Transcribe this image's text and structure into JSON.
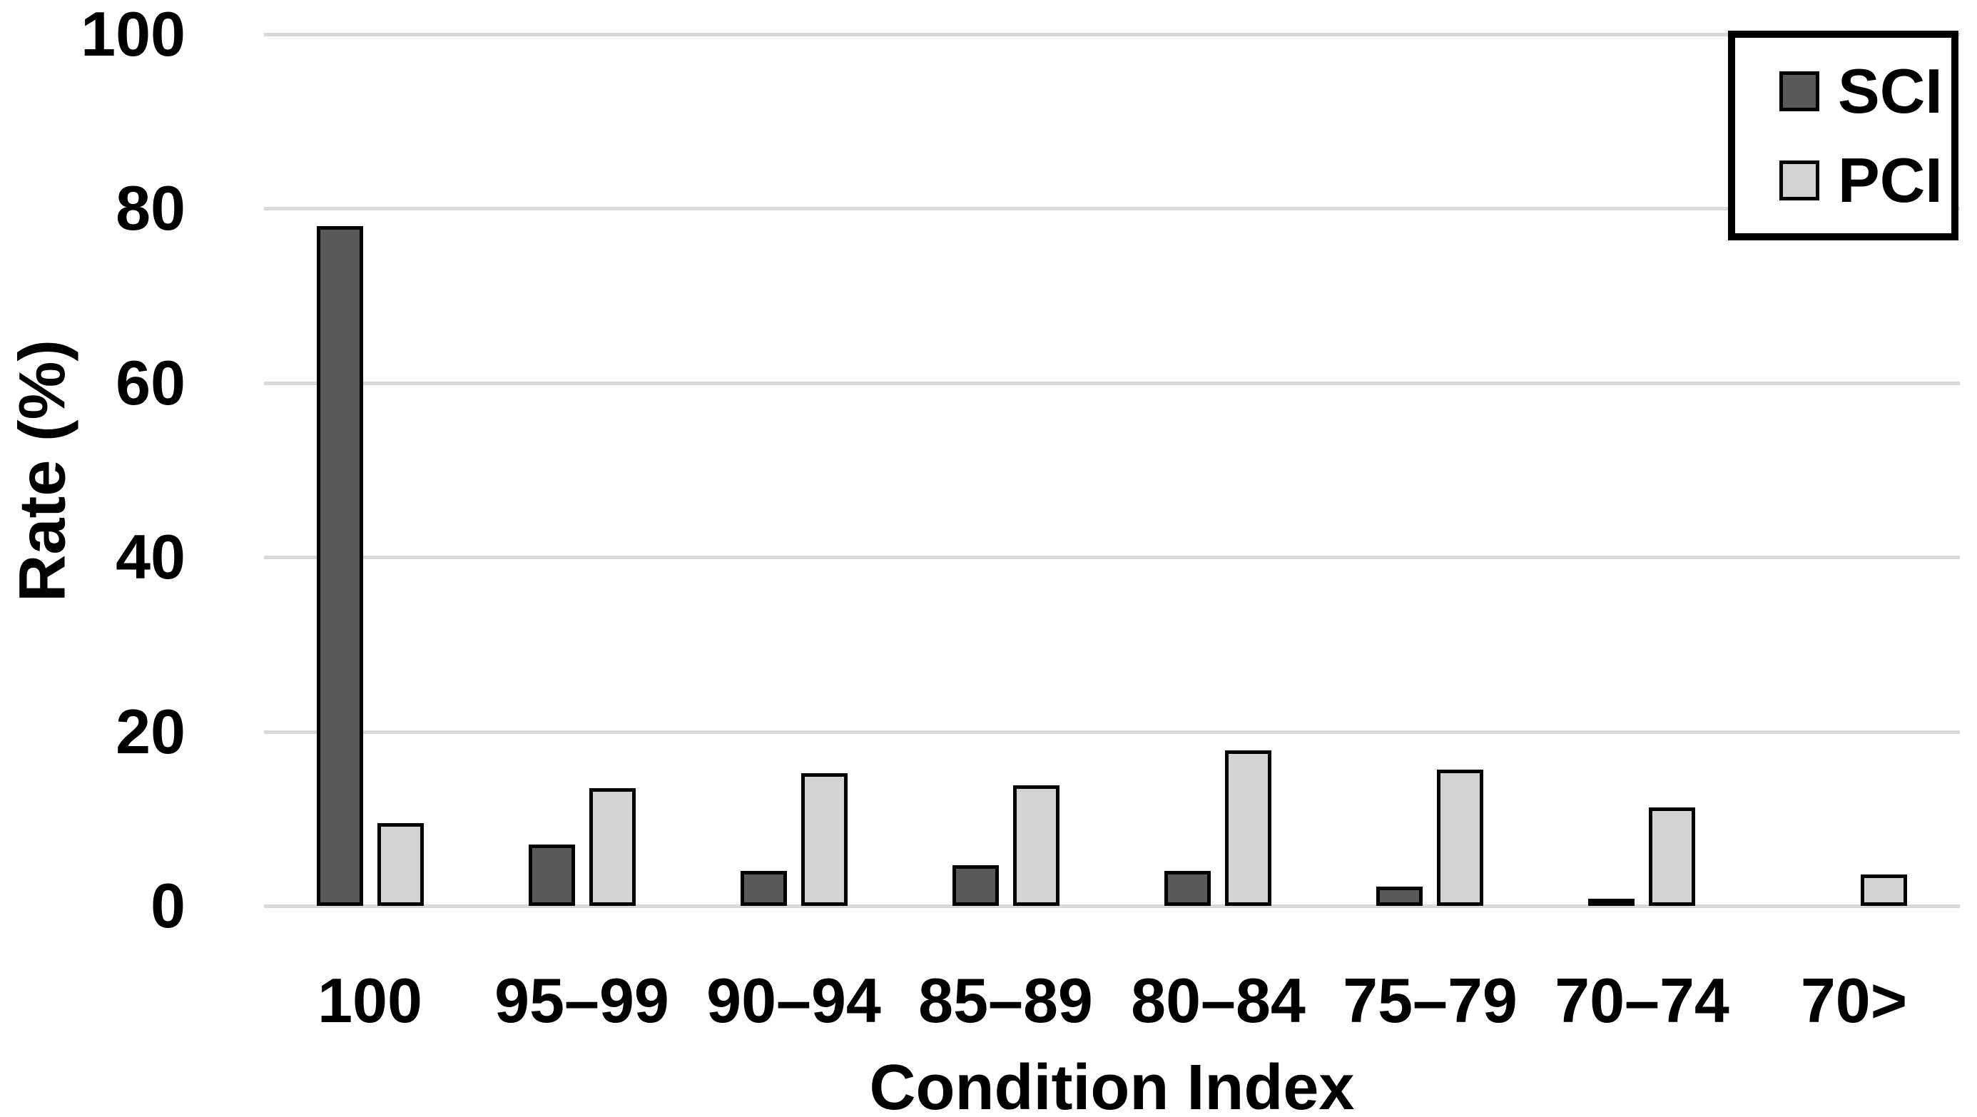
{
  "chart_data": {
    "type": "bar",
    "title": "",
    "xlabel": "Condition Index",
    "ylabel": "Rate (%)",
    "categories": [
      "100",
      "95–99",
      "90–94",
      "85–89",
      "80–84",
      "75–79",
      "70–74",
      "70>"
    ],
    "series": [
      {
        "name": "SCI",
        "color": "#595959",
        "values": [
          78,
          7,
          4,
          4.7,
          4,
          2.2,
          0.4,
          0
        ]
      },
      {
        "name": "PCI",
        "color": "#d3d3d3",
        "values": [
          9.5,
          13.5,
          15.2,
          13.8,
          17.8,
          15.6,
          11.3,
          3.6
        ]
      }
    ],
    "ylim": [
      0,
      100
    ],
    "yticks": [
      0,
      20,
      40,
      60,
      80,
      100
    ],
    "grid": "horizontal",
    "gridline_color": "#d9d9d9",
    "bar_border_color": "#000000",
    "legend_position": "top-right",
    "legend_entries": [
      "SCI",
      "PCI"
    ]
  }
}
